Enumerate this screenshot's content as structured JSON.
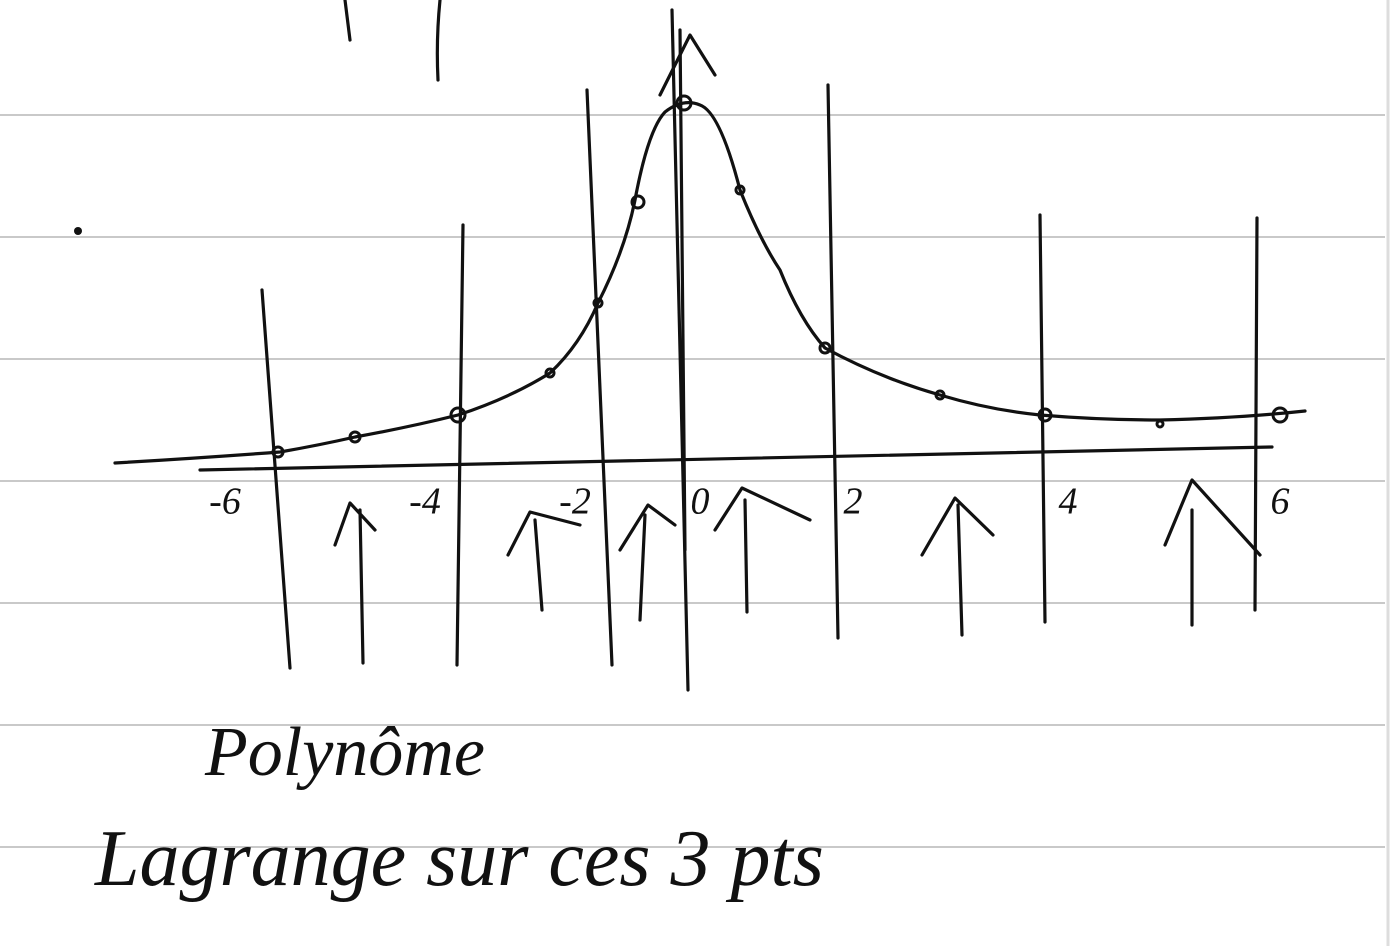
{
  "axis_labels": [
    "-6",
    "-4",
    "-2",
    "0",
    "2",
    "4",
    "6"
  ],
  "notes": [
    "Polynôme",
    "Lagrange sur ces 3 pts"
  ]
}
